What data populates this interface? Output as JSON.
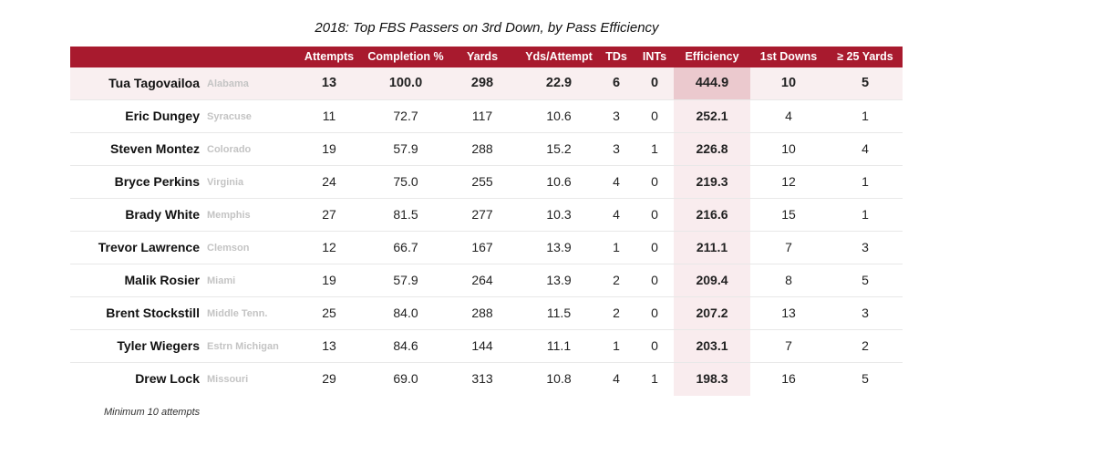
{
  "chart_data": {
    "type": "table",
    "title": "2018: Top FBS Passers on 3rd Down, by Pass Efficiency",
    "columns": [
      "Attempts",
      "Completion %",
      "Yards",
      "Yds/Attempt",
      "TDs",
      "INTs",
      "Efficiency",
      "1st Downs",
      "≥ 25 Yards"
    ],
    "rows": [
      {
        "player": "Tua Tagovailoa",
        "team": "Alabama",
        "values": [
          "13",
          "100.0",
          "298",
          "22.9",
          "6",
          "0",
          "444.9",
          "10",
          "5"
        ]
      },
      {
        "player": "Eric Dungey",
        "team": "Syracuse",
        "values": [
          "11",
          "72.7",
          "117",
          "10.6",
          "3",
          "0",
          "252.1",
          "4",
          "1"
        ]
      },
      {
        "player": "Steven Montez",
        "team": "Colorado",
        "values": [
          "19",
          "57.9",
          "288",
          "15.2",
          "3",
          "1",
          "226.8",
          "10",
          "4"
        ]
      },
      {
        "player": "Bryce Perkins",
        "team": "Virginia",
        "values": [
          "24",
          "75.0",
          "255",
          "10.6",
          "4",
          "0",
          "219.3",
          "12",
          "1"
        ]
      },
      {
        "player": "Brady White",
        "team": "Memphis",
        "values": [
          "27",
          "81.5",
          "277",
          "10.3",
          "4",
          "0",
          "216.6",
          "15",
          "1"
        ]
      },
      {
        "player": "Trevor Lawrence",
        "team": "Clemson",
        "values": [
          "12",
          "66.7",
          "167",
          "13.9",
          "1",
          "0",
          "211.1",
          "7",
          "3"
        ]
      },
      {
        "player": "Malik Rosier",
        "team": "Miami",
        "values": [
          "19",
          "57.9",
          "264",
          "13.9",
          "2",
          "0",
          "209.4",
          "8",
          "5"
        ]
      },
      {
        "player": "Brent Stockstill",
        "team": "Middle Tenn.",
        "values": [
          "25",
          "84.0",
          "288",
          "11.5",
          "2",
          "0",
          "207.2",
          "13",
          "3"
        ]
      },
      {
        "player": "Tyler Wiegers",
        "team": "Estrn Michigan",
        "values": [
          "13",
          "84.6",
          "144",
          "11.1",
          "1",
          "0",
          "203.1",
          "7",
          "2"
        ]
      },
      {
        "player": "Drew Lock",
        "team": "Missouri",
        "values": [
          "29",
          "69.0",
          "313",
          "10.8",
          "4",
          "1",
          "198.3",
          "16",
          "5"
        ]
      }
    ],
    "highlight_row": 0,
    "highlight_column": "Efficiency",
    "note": "Minimum 10 attempts"
  },
  "colors": {
    "header_bg": "#a81a2e",
    "highlight_tint": "#f9ecee",
    "team_text": "#c4c4c4"
  }
}
